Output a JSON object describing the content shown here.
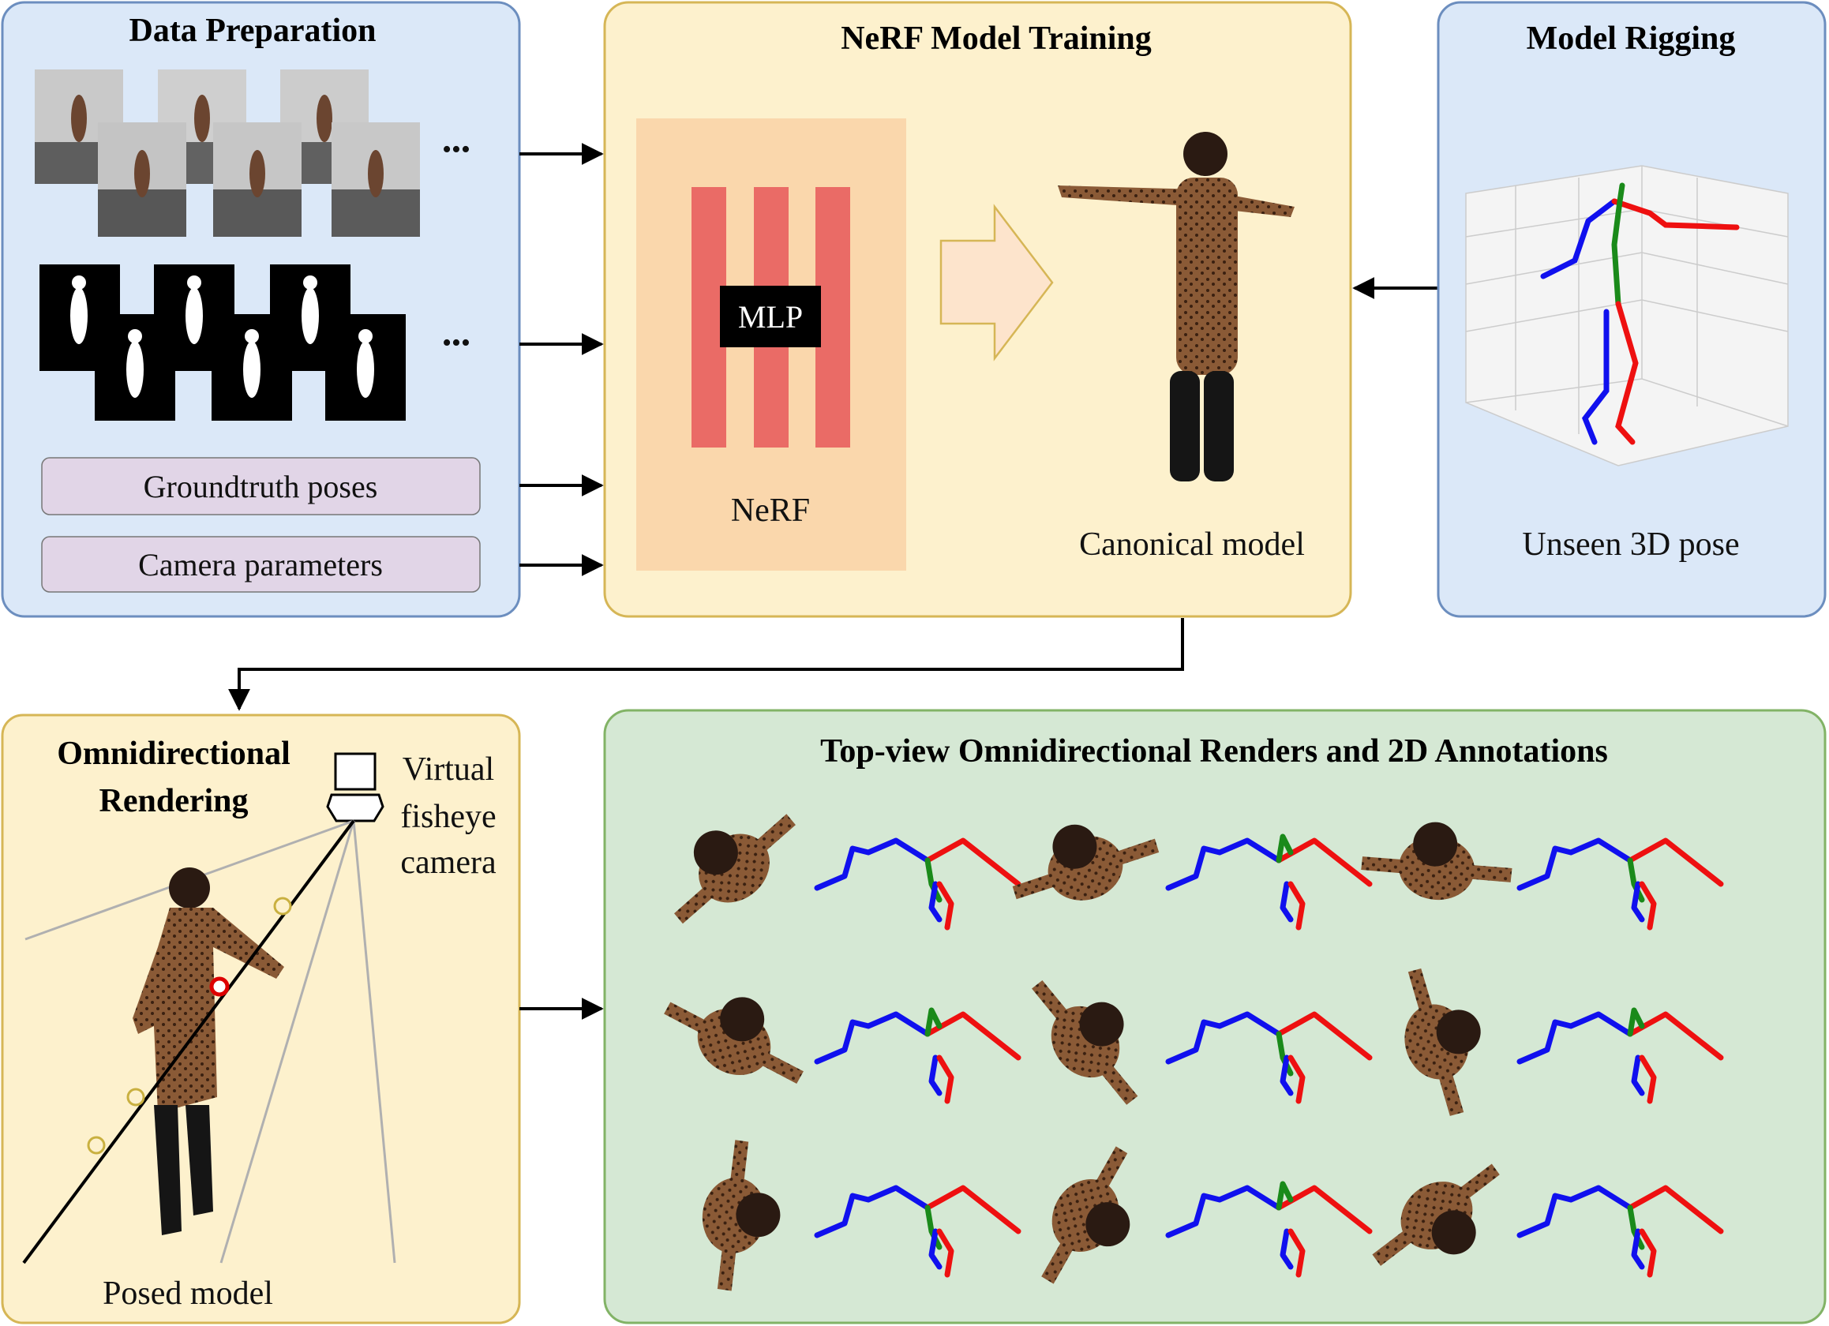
{
  "panels": {
    "data_prep": {
      "title": "Data Preparation",
      "ellipsis": "•••",
      "pill_1": "Groundtruth poses",
      "pill_2": "Camera parameters"
    },
    "nerf": {
      "title": "NeRF Model Training",
      "mlp": "MLP",
      "nerf_label": "NeRF",
      "canonical_label": "Canonical model"
    },
    "rigging": {
      "title": "Model Rigging",
      "pose_label": "Unseen 3D pose"
    },
    "omni": {
      "title_line1": "Omnidirectional",
      "title_line2": "Rendering",
      "cam_line1": "Virtual",
      "cam_line2": "fisheye",
      "cam_line3": "camera",
      "posed_label": "Posed model"
    },
    "renders": {
      "title": "Top-view Omnidirectional Renders and 2D Annotations"
    }
  },
  "colors": {
    "blue_panel": "#dbe8f8",
    "blue_border": "#6c8ebf",
    "yellow_panel": "#fdf1cd",
    "yellow_border": "#d6b656",
    "green_panel": "#d5e8d4",
    "green_border": "#82b366",
    "pill": "#e1d5e7",
    "nerf_bg": "#fad7ac",
    "mlp_bar": "#ea6b66",
    "skeleton_left": "#1010ee",
    "skeleton_right": "#ee1010",
    "skeleton_spine": "#1a8a1a",
    "skin_tone": "#7a4a2a"
  },
  "icons": [
    "arrow-right-icon",
    "arrow-left-icon",
    "arrow-down-icon",
    "camera-icon",
    "fisheye-lens-icon",
    "block-arrow-icon"
  ]
}
